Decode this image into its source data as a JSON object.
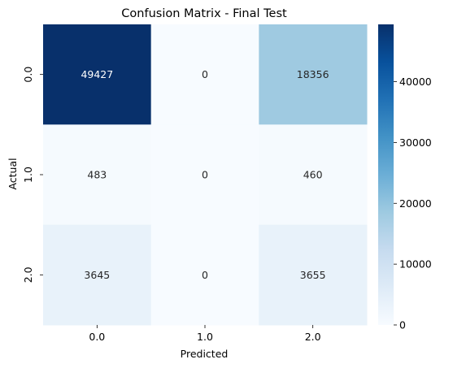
{
  "chart_data": {
    "type": "heatmap",
    "title": "Confusion Matrix - Final Test",
    "xlabel": "Predicted",
    "ylabel": "Actual",
    "x_categories": [
      "0.0",
      "1.0",
      "2.0"
    ],
    "y_categories": [
      "0.0",
      "1.0",
      "2.0"
    ],
    "values": [
      [
        49427,
        0,
        18356
      ],
      [
        483,
        0,
        460
      ],
      [
        3645,
        0,
        3655
      ]
    ],
    "colormap": "Blues",
    "color_range": [
      0,
      49427
    ],
    "colorbar_ticks": [
      "0",
      "10000",
      "20000",
      "30000",
      "40000"
    ],
    "colorbar_tick_values": [
      0,
      10000,
      20000,
      30000,
      40000
    ]
  }
}
